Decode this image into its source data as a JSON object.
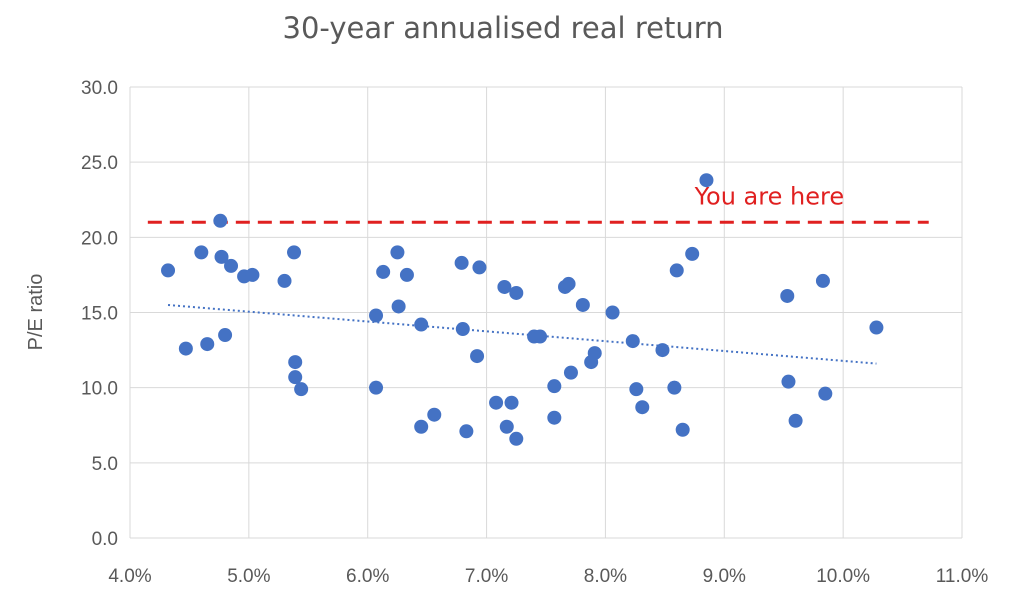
{
  "chart_data": {
    "type": "scatter",
    "title": "30-year annualised real return",
    "xlabel": "",
    "ylabel": "P/E ratio",
    "xlim": [
      0.04,
      0.11
    ],
    "ylim": [
      0,
      30
    ],
    "x_ticks": [
      {
        "value": 0.04,
        "label": "4.0%"
      },
      {
        "value": 0.05,
        "label": "5.0%"
      },
      {
        "value": 0.06,
        "label": "6.0%"
      },
      {
        "value": 0.07,
        "label": "7.0%"
      },
      {
        "value": 0.08,
        "label": "8.0%"
      },
      {
        "value": 0.09,
        "label": "9.0%"
      },
      {
        "value": 0.1,
        "label": "10.0%"
      },
      {
        "value": 0.11,
        "label": "11.0%"
      }
    ],
    "y_ticks": [
      {
        "value": 0,
        "label": "0.0"
      },
      {
        "value": 5,
        "label": "5.0"
      },
      {
        "value": 10,
        "label": "10.0"
      },
      {
        "value": 15,
        "label": "15.0"
      },
      {
        "value": 20,
        "label": "20.0"
      },
      {
        "value": 25,
        "label": "25.0"
      },
      {
        "value": 30,
        "label": "30.0"
      }
    ],
    "grid": true,
    "point_color": "#4472c4",
    "series": [
      {
        "x": [
          0.0432,
          0.0447,
          0.046,
          0.0465,
          0.0476,
          0.0477,
          0.048,
          0.0485,
          0.0496,
          0.0503,
          0.053,
          0.0538,
          0.0539,
          0.0539,
          0.0544,
          0.0607,
          0.0607,
          0.0613,
          0.0625,
          0.0626,
          0.0633,
          0.0645,
          0.0645,
          0.0656,
          0.0679,
          0.068,
          0.0683,
          0.0692,
          0.0694,
          0.0708,
          0.0715,
          0.0717,
          0.0721,
          0.0725,
          0.0725,
          0.074,
          0.0745,
          0.0757,
          0.0757,
          0.0766,
          0.0769,
          0.0771,
          0.0781,
          0.0788,
          0.0791,
          0.0806,
          0.0823,
          0.0826,
          0.0831,
          0.0848,
          0.0858,
          0.086,
          0.0865,
          0.0873,
          0.0885,
          0.0953,
          0.0954,
          0.096,
          0.0983,
          0.0985,
          0.1028
        ],
        "y": [
          17.8,
          12.6,
          19.0,
          12.9,
          21.1,
          18.7,
          13.5,
          18.1,
          17.4,
          17.5,
          17.1,
          19.0,
          11.7,
          10.7,
          9.9,
          14.8,
          10.0,
          17.7,
          19.0,
          15.4,
          17.5,
          14.2,
          7.4,
          8.2,
          18.3,
          13.9,
          7.1,
          12.1,
          18.0,
          9.0,
          16.7,
          7.4,
          9.0,
          16.3,
          6.6,
          13.4,
          13.4,
          10.1,
          8.0,
          16.7,
          16.9,
          11.0,
          15.5,
          11.7,
          12.3,
          15.0,
          13.1,
          9.9,
          8.7,
          12.5,
          10.0,
          17.8,
          7.2,
          18.9,
          23.8,
          16.1,
          10.4,
          7.8,
          17.1,
          9.6,
          14.0
        ]
      }
    ],
    "trendline": {
      "type": "linear",
      "style": "dotted",
      "x": [
        0.0432,
        0.1028
      ],
      "y": [
        15.5,
        11.6
      ]
    },
    "reference_line": {
      "y": 21.0,
      "style": "dashed",
      "color": "#e02020",
      "x_range": [
        0.0415,
        0.1072
      ]
    },
    "annotation": {
      "text": "You are here",
      "color": "#e02020",
      "x": 0.0875,
      "y": 22.7
    }
  }
}
